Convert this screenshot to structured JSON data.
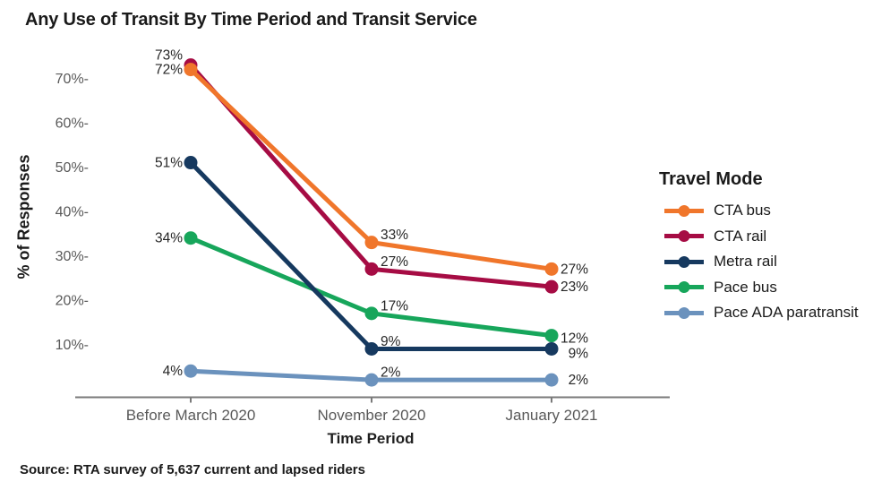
{
  "chart_data": {
    "type": "line",
    "title": "Any Use of Transit By Time Period and Transit Service",
    "xlabel": "Time Period",
    "ylabel": "% of Responses",
    "categories": [
      "Before March 2020",
      "November 2020",
      "January 2021"
    ],
    "series": [
      {
        "name": "CTA bus",
        "color": "#F0762B",
        "values": [
          72,
          33,
          27
        ]
      },
      {
        "name": "CTA rail",
        "color": "#A60C44",
        "values": [
          73,
          27,
          23
        ]
      },
      {
        "name": "Metra rail",
        "color": "#16395F",
        "values": [
          51,
          9,
          9
        ]
      },
      {
        "name": "Pace bus",
        "color": "#17A65B",
        "values": [
          34,
          17,
          12
        ]
      },
      {
        "name": "Pace ADA paratransit",
        "color": "#6B92BD",
        "values": [
          4,
          2,
          2
        ]
      }
    ],
    "point_label_format": "{v}%",
    "y_ticks": [
      10,
      20,
      30,
      40,
      50,
      60,
      70
    ],
    "y_tick_label_format": "{v}%-",
    "ylim": [
      0,
      76
    ],
    "grid": false,
    "legend_title": "Travel Mode",
    "legend_position": "right"
  },
  "source": "Source: RTA survey of 5,637 current and lapsed riders",
  "colors": {
    "axis_text": "#595959",
    "axis_line": "#7A7A7A",
    "value_label": "#262626",
    "background": "#FFFFFF"
  }
}
